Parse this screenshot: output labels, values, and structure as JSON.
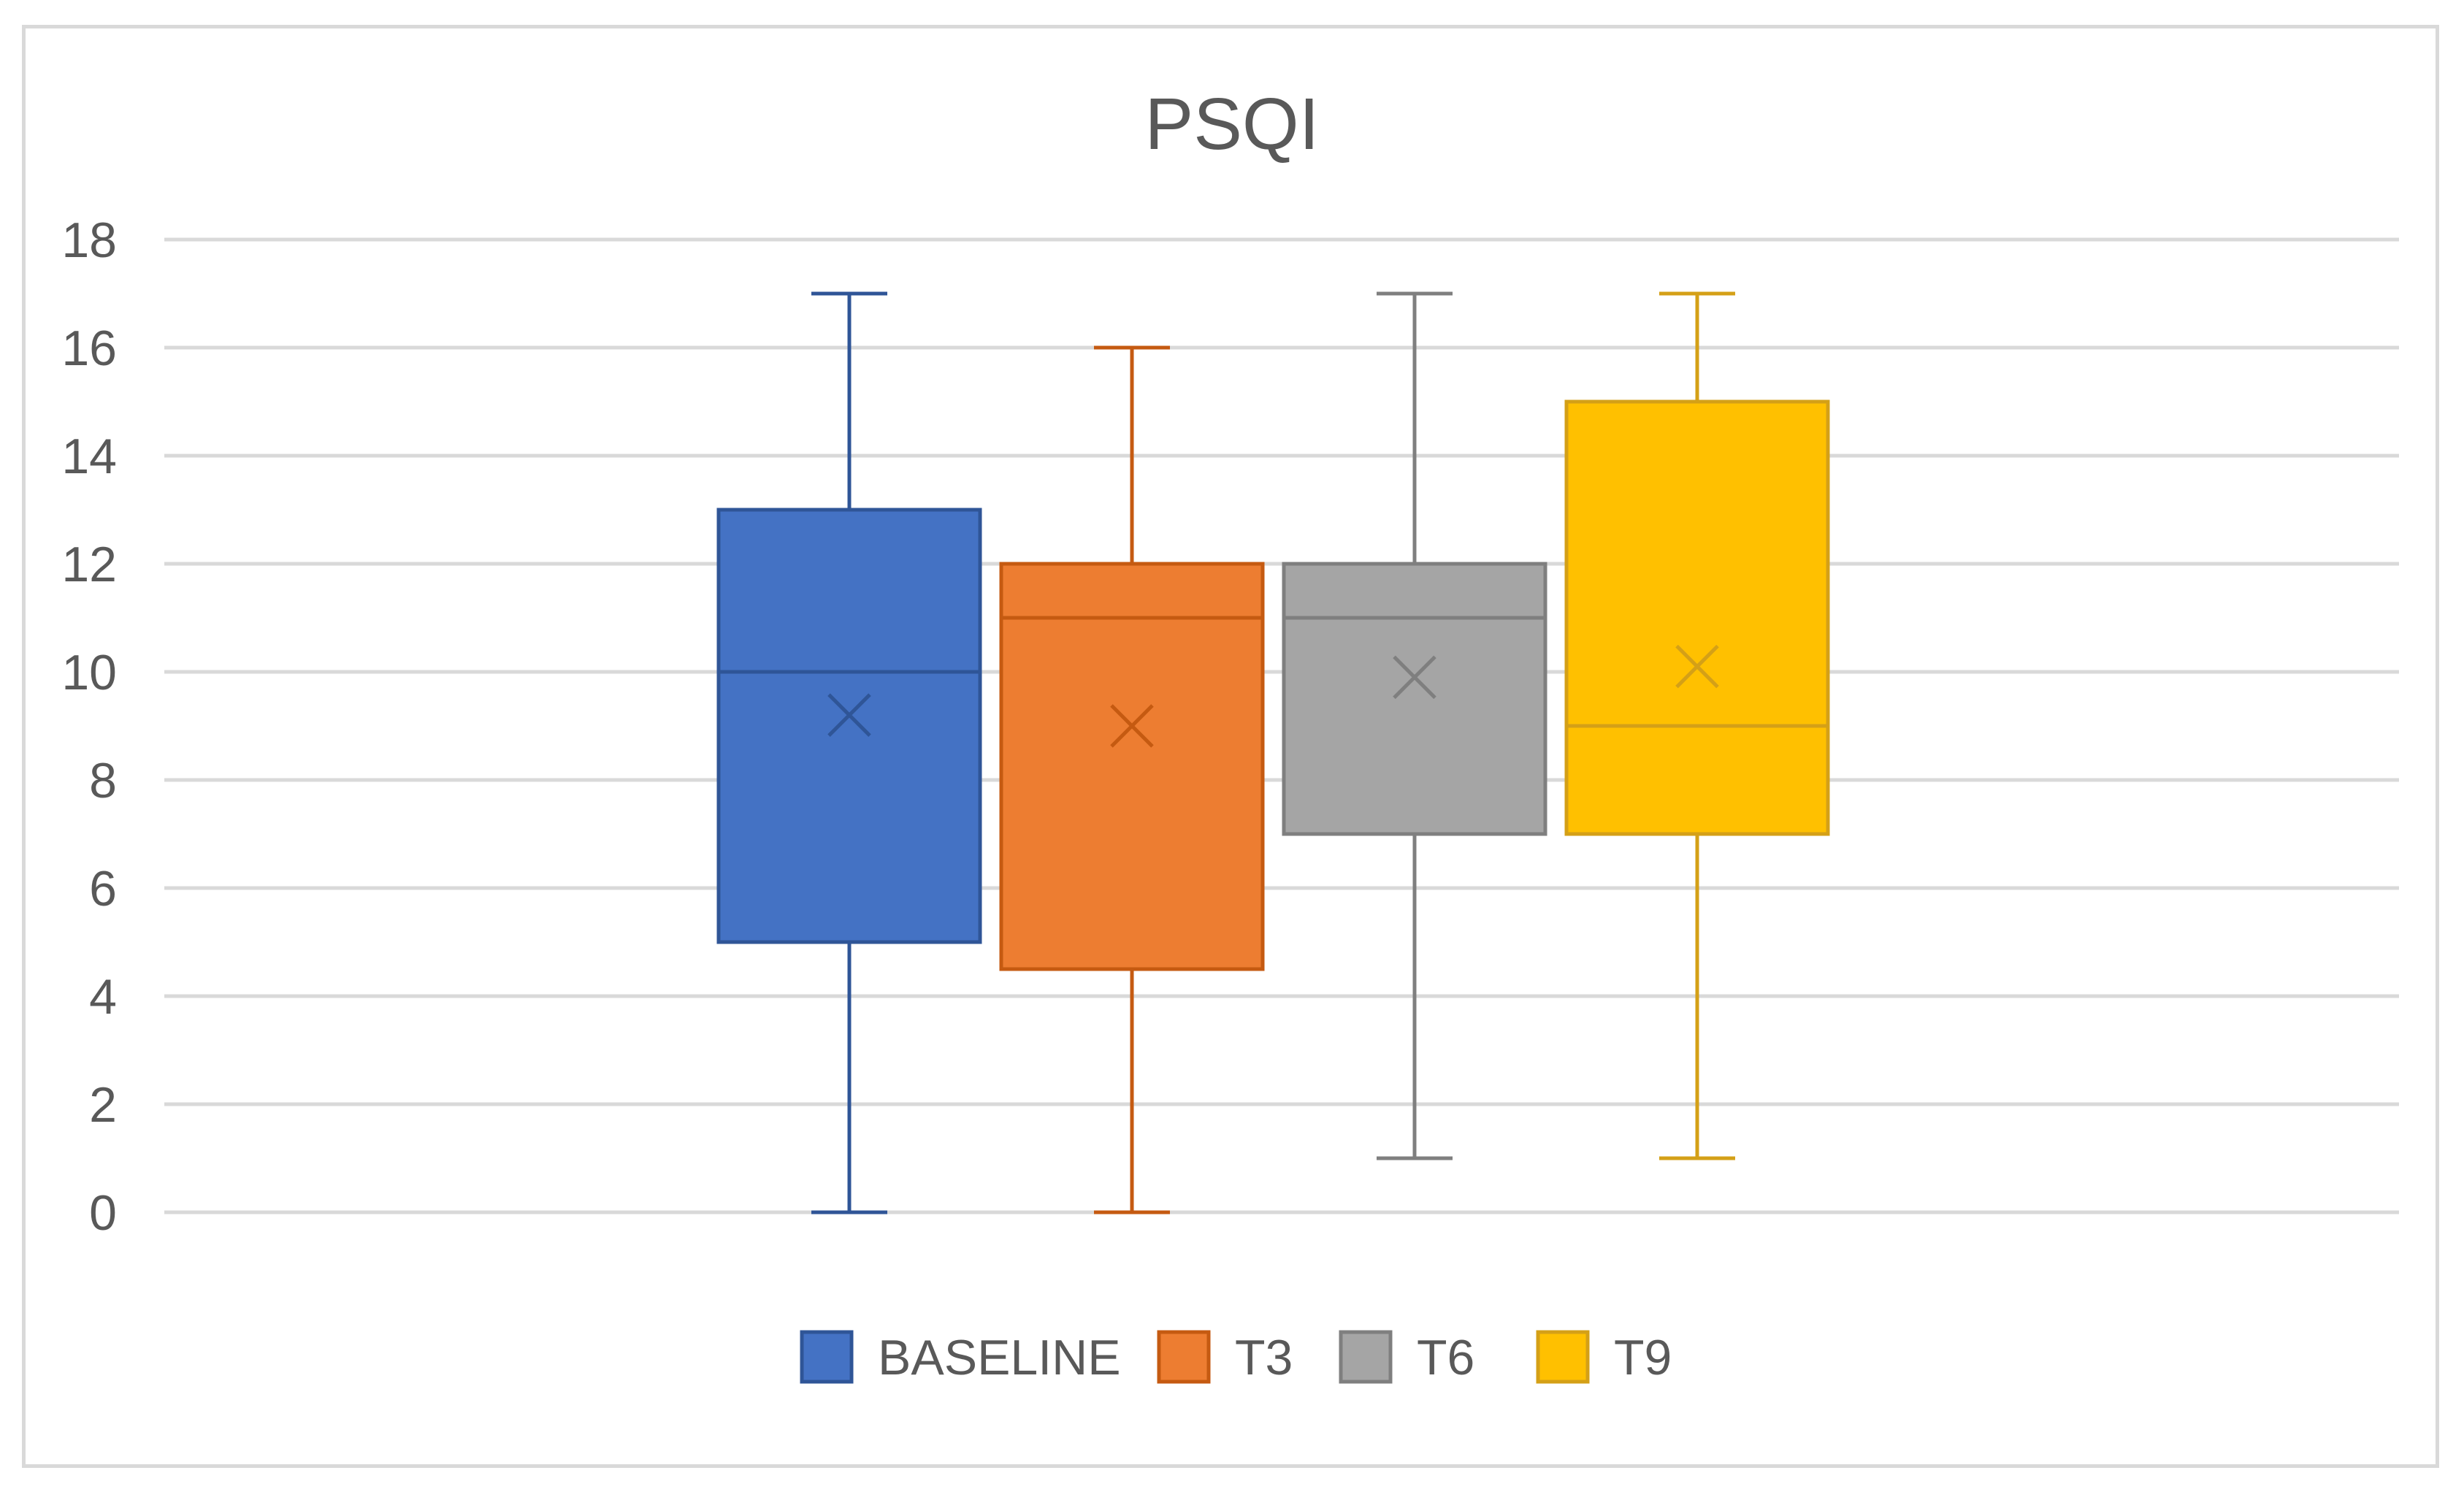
{
  "chart_data": {
    "type": "boxplot",
    "title": "PSQI",
    "xlabel": "",
    "ylabel": "",
    "ylim": [
      0,
      18
    ],
    "y_ticks": [
      "0",
      "2",
      "4",
      "6",
      "8",
      "10",
      "12",
      "14",
      "16",
      "18"
    ],
    "grid": true,
    "legend_position": "bottom",
    "series": [
      {
        "name": "BASELINE",
        "color": "#4472c4",
        "stroke": "#2f5597",
        "min": 0,
        "q1": 5,
        "median": 10,
        "q3": 13,
        "max": 17,
        "mean": 9.2
      },
      {
        "name": "T3",
        "color": "#ed7d31",
        "stroke": "#c55a11",
        "min": 0,
        "q1": 4.5,
        "median": 11,
        "q3": 12,
        "max": 16,
        "mean": 9.0
      },
      {
        "name": "T6",
        "color": "#a5a5a5",
        "stroke": "#7f7f7f",
        "min": 1,
        "q1": 7,
        "median": 11,
        "q3": 12,
        "max": 17,
        "mean": 9.9
      },
      {
        "name": "T9",
        "color": "#ffc000",
        "stroke": "#d4a017",
        "min": 1,
        "q1": 7,
        "median": 9,
        "q3": 15,
        "max": 17,
        "mean": 10.1
      }
    ]
  }
}
